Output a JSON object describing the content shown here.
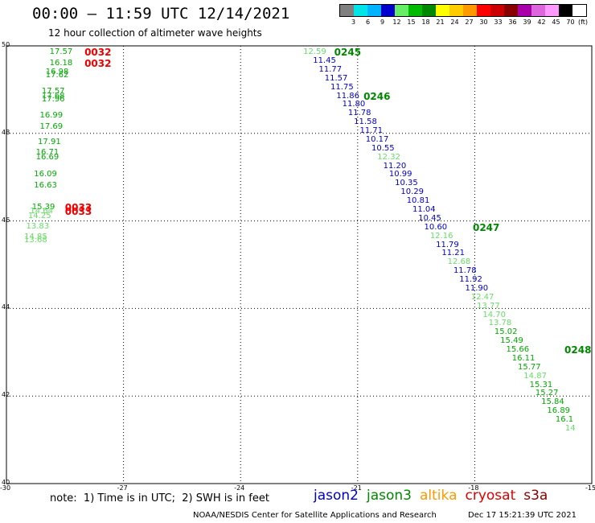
{
  "title": "00:00 – 11:59 UTC 12/14/2021",
  "subtitle": "12 hour collection of altimeter wave heights",
  "legend": {
    "unit": "(ft)",
    "bins": [
      {
        "label": "3",
        "color": "#808080"
      },
      {
        "label": "6",
        "color": "#00e6e6"
      },
      {
        "label": "9",
        "color": "#00b4ff"
      },
      {
        "label": "12",
        "color": "#0000cc"
      },
      {
        "label": "15",
        "color": "#66ee66"
      },
      {
        "label": "18",
        "color": "#00bb00"
      },
      {
        "label": "21",
        "color": "#008800"
      },
      {
        "label": "24",
        "color": "#ffff00"
      },
      {
        "label": "27",
        "color": "#ffcc00"
      },
      {
        "label": "30",
        "color": "#ff9900"
      },
      {
        "label": "33",
        "color": "#ff0000"
      },
      {
        "label": "36",
        "color": "#cc0000"
      },
      {
        "label": "39",
        "color": "#880000"
      },
      {
        "label": "42",
        "color": "#aa00aa"
      },
      {
        "label": "45",
        "color": "#dd66dd"
      },
      {
        "label": "70",
        "color": "#ff99ff"
      },
      {
        "label": "",
        "color": "#000000"
      }
    ]
  },
  "map": {
    "lon_range": [
      -30,
      -15
    ],
    "lat_range": [
      40,
      50
    ],
    "lon_ticks": [
      -30,
      -27,
      -24,
      -21,
      -18,
      -15
    ],
    "lat_ticks": [
      40,
      42,
      44,
      46,
      48,
      50
    ],
    "colors": {
      "jason2": "#0000cc",
      "jason3": "#008800",
      "light_green": "#66dd66",
      "altika": "#ff9900",
      "cryosat": "#dd0000",
      "s3a": "#880000"
    },
    "observations": [
      {
        "lon": -28.6,
        "lat": 49.85,
        "swh": "17.57",
        "color": "#00aa00"
      },
      {
        "lon": -28.6,
        "lat": 49.6,
        "swh": "16.18",
        "color": "#00aa00"
      },
      {
        "lon": -28.7,
        "lat": 49.4,
        "swh": "16.98",
        "color": "#00aa00"
      },
      {
        "lon": -28.7,
        "lat": 49.32,
        "swh": "17.62",
        "color": "#00aa00"
      },
      {
        "lon": -28.8,
        "lat": 48.95,
        "swh": "17.57",
        "color": "#00aa00"
      },
      {
        "lon": -28.8,
        "lat": 48.85,
        "swh": "17.68",
        "color": "#00aa00"
      },
      {
        "lon": -28.8,
        "lat": 48.77,
        "swh": "17.96",
        "color": "#00aa00"
      },
      {
        "lon": -28.85,
        "lat": 48.4,
        "swh": "16.99",
        "color": "#00aa00"
      },
      {
        "lon": -28.85,
        "lat": 48.15,
        "swh": "17.69",
        "color": "#00aa00"
      },
      {
        "lon": -28.9,
        "lat": 47.8,
        "swh": "17.91",
        "color": "#00aa00"
      },
      {
        "lon": -28.95,
        "lat": 47.55,
        "swh": "16.71",
        "color": "#00aa00"
      },
      {
        "lon": -28.95,
        "lat": 47.45,
        "swh": "16.69",
        "color": "#00aa00"
      },
      {
        "lon": -29.0,
        "lat": 47.05,
        "swh": "16.09",
        "color": "#00aa00"
      },
      {
        "lon": -29.0,
        "lat": 46.8,
        "swh": "16.63",
        "color": "#00aa00"
      },
      {
        "lon": -29.05,
        "lat": 46.3,
        "swh": "15.39",
        "color": "#00aa00"
      },
      {
        "lon": -29.1,
        "lat": 46.22,
        "swh": "14.64",
        "color": "#66dd66"
      },
      {
        "lon": -29.15,
        "lat": 46.1,
        "swh": "14.25",
        "color": "#66dd66"
      },
      {
        "lon": -29.2,
        "lat": 45.87,
        "swh": "13.83",
        "color": "#66dd66"
      },
      {
        "lon": -29.25,
        "lat": 45.62,
        "swh": "14.85",
        "color": "#66dd66"
      },
      {
        "lon": -29.25,
        "lat": 45.55,
        "swh": "13.68",
        "color": "#66dd66"
      },
      {
        "lon": -22.1,
        "lat": 49.85,
        "swh": "12.59",
        "color": "#66dd66"
      },
      {
        "lon": -21.85,
        "lat": 49.65,
        "swh": "11.45",
        "color": "#0000cc"
      },
      {
        "lon": -21.7,
        "lat": 49.45,
        "swh": "11.77",
        "color": "#0000cc"
      },
      {
        "lon": -21.55,
        "lat": 49.25,
        "swh": "11.57",
        "color": "#0000cc"
      },
      {
        "lon": -21.4,
        "lat": 49.05,
        "swh": "11.75",
        "color": "#0000cc"
      },
      {
        "lon": -21.25,
        "lat": 48.85,
        "swh": "11.86",
        "color": "#0000cc"
      },
      {
        "lon": -21.1,
        "lat": 48.65,
        "swh": "11.80",
        "color": "#0000cc"
      },
      {
        "lon": -20.95,
        "lat": 48.45,
        "swh": "11.78",
        "color": "#0000cc"
      },
      {
        "lon": -20.8,
        "lat": 48.25,
        "swh": "11.58",
        "color": "#0000cc"
      },
      {
        "lon": -20.65,
        "lat": 48.05,
        "swh": "11.71",
        "color": "#0000cc"
      },
      {
        "lon": -20.5,
        "lat": 47.85,
        "swh": "10.17",
        "color": "#0000cc"
      },
      {
        "lon": -20.35,
        "lat": 47.65,
        "swh": "10.55",
        "color": "#0000cc"
      },
      {
        "lon": -20.2,
        "lat": 47.45,
        "swh": "12.32",
        "color": "#66dd66"
      },
      {
        "lon": -20.05,
        "lat": 47.25,
        "swh": "11.20",
        "color": "#0000cc"
      },
      {
        "lon": -19.9,
        "lat": 47.05,
        "swh": "10.99",
        "color": "#0000cc"
      },
      {
        "lon": -19.75,
        "lat": 46.85,
        "swh": "10.35",
        "color": "#0000cc"
      },
      {
        "lon": -19.6,
        "lat": 46.65,
        "swh": "10.29",
        "color": "#0000cc"
      },
      {
        "lon": -19.45,
        "lat": 46.45,
        "swh": "10.81",
        "color": "#0000cc"
      },
      {
        "lon": -19.3,
        "lat": 46.25,
        "swh": "11.04",
        "color": "#0000cc"
      },
      {
        "lon": -19.15,
        "lat": 46.05,
        "swh": "10.45",
        "color": "#0000cc"
      },
      {
        "lon": -19.0,
        "lat": 45.85,
        "swh": "10.60",
        "color": "#0000cc"
      },
      {
        "lon": -18.85,
        "lat": 45.65,
        "swh": "12.16",
        "color": "#66dd66"
      },
      {
        "lon": -18.7,
        "lat": 45.45,
        "swh": "11.79",
        "color": "#0000cc"
      },
      {
        "lon": -18.55,
        "lat": 45.25,
        "swh": "11.21",
        "color": "#0000cc"
      },
      {
        "lon": -18.4,
        "lat": 45.05,
        "swh": "12.68",
        "color": "#66dd66"
      },
      {
        "lon": -18.25,
        "lat": 44.85,
        "swh": "11.78",
        "color": "#0000cc"
      },
      {
        "lon": -18.1,
        "lat": 44.65,
        "swh": "11.92",
        "color": "#0000cc"
      },
      {
        "lon": -17.95,
        "lat": 44.45,
        "swh": "11.90",
        "color": "#0000cc"
      },
      {
        "lon": -17.8,
        "lat": 44.25,
        "swh": "12.47",
        "color": "#66dd66"
      },
      {
        "lon": -17.65,
        "lat": 44.05,
        "swh": "13.77",
        "color": "#66dd66"
      },
      {
        "lon": -17.5,
        "lat": 43.85,
        "swh": "14.70",
        "color": "#66dd66"
      },
      {
        "lon": -17.35,
        "lat": 43.65,
        "swh": "13.78",
        "color": "#66dd66"
      },
      {
        "lon": -17.2,
        "lat": 43.45,
        "swh": "15.02",
        "color": "#00aa00"
      },
      {
        "lon": -17.05,
        "lat": 43.25,
        "swh": "15.49",
        "color": "#00aa00"
      },
      {
        "lon": -16.9,
        "lat": 43.05,
        "swh": "15.66",
        "color": "#00aa00"
      },
      {
        "lon": -16.75,
        "lat": 42.85,
        "swh": "16.11",
        "color": "#00aa00"
      },
      {
        "lon": -16.6,
        "lat": 42.65,
        "swh": "15.77",
        "color": "#00aa00"
      },
      {
        "lon": -16.45,
        "lat": 42.45,
        "swh": "14.87",
        "color": "#66dd66"
      },
      {
        "lon": -16.3,
        "lat": 42.25,
        "swh": "15.31",
        "color": "#00aa00"
      },
      {
        "lon": -16.15,
        "lat": 42.05,
        "swh": "15.27",
        "color": "#00aa00"
      },
      {
        "lon": -16.0,
        "lat": 41.85,
        "swh": "15.84",
        "color": "#00aa00"
      },
      {
        "lon": -15.85,
        "lat": 41.65,
        "swh": "16.89",
        "color": "#00aa00"
      },
      {
        "lon": -15.7,
        "lat": 41.45,
        "swh": "16.1",
        "color": "#00aa00"
      },
      {
        "lon": -15.55,
        "lat": 41.25,
        "swh": "14",
        "color": "#66dd66"
      }
    ],
    "pass_labels": [
      {
        "lon": -28.0,
        "lat": 49.85,
        "text": "0032",
        "color": "#ee0000"
      },
      {
        "lon": -28.0,
        "lat": 49.6,
        "text": "0032",
        "color": "#ee0000"
      },
      {
        "lon": -28.5,
        "lat": 46.3,
        "text": "0033",
        "color": "#ee0000"
      },
      {
        "lon": -28.5,
        "lat": 46.22,
        "text": "0033",
        "color": "#ee0000"
      },
      {
        "lon": -21.6,
        "lat": 49.85,
        "text": "0245",
        "color": "#008800"
      },
      {
        "lon": -20.85,
        "lat": 48.85,
        "text": "0246",
        "color": "#008800"
      },
      {
        "lon": -18.05,
        "lat": 45.85,
        "text": "0247",
        "color": "#008800"
      },
      {
        "lon": -15.7,
        "lat": 43.05,
        "text": "0248",
        "color": "#008800"
      }
    ]
  },
  "note": "note:  1) Time is in UTC;  2) SWH is in feet",
  "satellites": [
    {
      "name": "jason2",
      "color": "#0000cc"
    },
    {
      "name": "jason3",
      "color": "#008800"
    },
    {
      "name": "altika",
      "color": "#ff9900"
    },
    {
      "name": "cryosat",
      "color": "#dd0000"
    },
    {
      "name": "s3a",
      "color": "#880000"
    }
  ],
  "footer": "NOAA/NESDIS Center for Satellite Applications and Research",
  "generated": "Dec 17 15:21:39 UTC 2021"
}
